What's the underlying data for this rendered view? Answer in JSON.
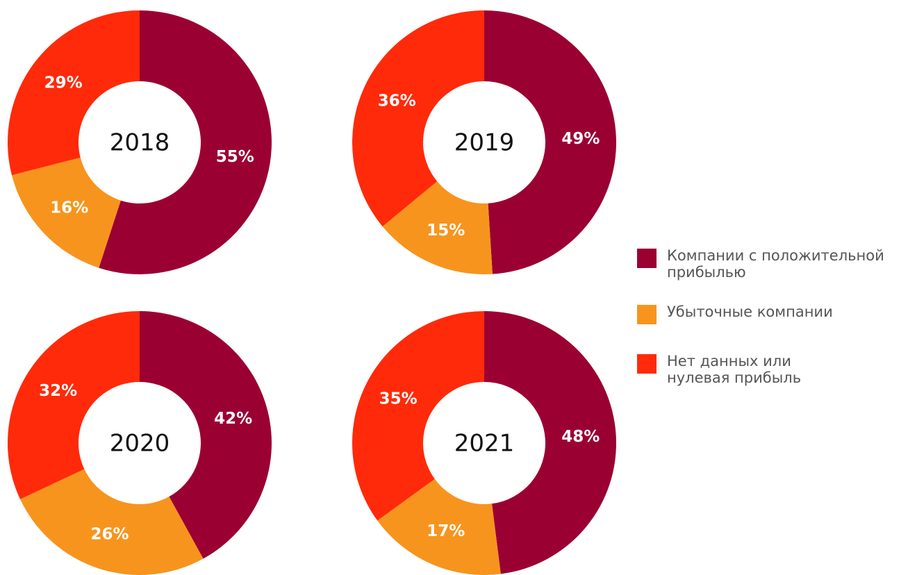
{
  "chart_data": [
    {
      "type": "pie",
      "title": "2018",
      "values": [
        55,
        16,
        29
      ],
      "value_labels": [
        "55%",
        "16%",
        "29%"
      ]
    },
    {
      "type": "pie",
      "title": "2019",
      "values": [
        49,
        15,
        36
      ],
      "value_labels": [
        "49%",
        "15%",
        "36%"
      ]
    },
    {
      "type": "pie",
      "title": "2020",
      "values": [
        42,
        26,
        32
      ],
      "value_labels": [
        "42%",
        "26%",
        "32%"
      ]
    },
    {
      "type": "pie",
      "title": "2021",
      "values": [
        48,
        17,
        35
      ],
      "value_labels": [
        "48%",
        "17%",
        "35%"
      ]
    }
  ],
  "legend": {
    "categories": [
      "Компании с положительной прибылью",
      "Убыточные компании",
      "Нет данных или нулевая прибыль"
    ],
    "colors": [
      "#9b0033",
      "#f7941d",
      "#ff2a0a"
    ]
  }
}
